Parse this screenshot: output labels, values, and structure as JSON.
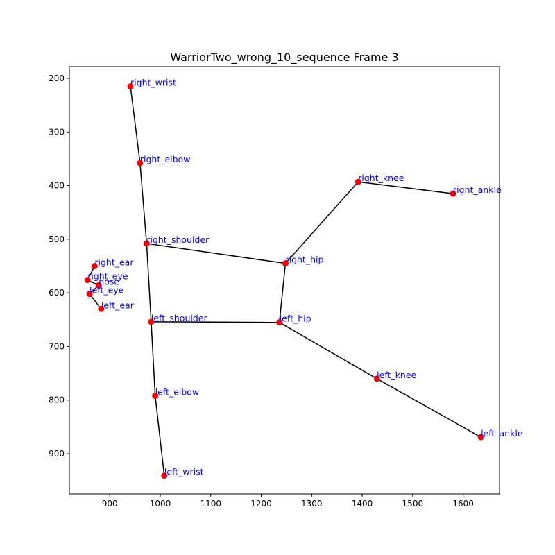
{
  "chart_data": {
    "type": "scatter",
    "title": "WarriorTwo_wrong_10_sequence Frame 3",
    "xlabel": "",
    "ylabel": "",
    "xlim": [
      820,
      1672
    ],
    "ylim": [
      975,
      178
    ],
    "y_inverted": true,
    "x_ticks": [
      900,
      1000,
      1100,
      1200,
      1300,
      1400,
      1500,
      1600
    ],
    "y_ticks": [
      200,
      300,
      400,
      500,
      600,
      700,
      800,
      900
    ],
    "grid": false,
    "point_color": "#ff0000",
    "line_color": "#000000",
    "label_color": "#0000ff",
    "keypoints": [
      {
        "name": "nose",
        "x": 878,
        "y": 586
      },
      {
        "name": "right_eye",
        "x": 856,
        "y": 576
      },
      {
        "name": "left_eye",
        "x": 860,
        "y": 602
      },
      {
        "name": "right_ear",
        "x": 870,
        "y": 550
      },
      {
        "name": "left_ear",
        "x": 883,
        "y": 630
      },
      {
        "name": "right_shoulder",
        "x": 973,
        "y": 508
      },
      {
        "name": "left_shoulder",
        "x": 982,
        "y": 654
      },
      {
        "name": "right_elbow",
        "x": 960,
        "y": 358
      },
      {
        "name": "left_elbow",
        "x": 990,
        "y": 792
      },
      {
        "name": "right_wrist",
        "x": 941,
        "y": 215
      },
      {
        "name": "left_wrist",
        "x": 1008,
        "y": 941
      },
      {
        "name": "right_hip",
        "x": 1248,
        "y": 545
      },
      {
        "name": "left_hip",
        "x": 1236,
        "y": 655
      },
      {
        "name": "right_knee",
        "x": 1392,
        "y": 393
      },
      {
        "name": "left_knee",
        "x": 1429,
        "y": 760
      },
      {
        "name": "right_ankle",
        "x": 1580,
        "y": 415
      },
      {
        "name": "left_ankle",
        "x": 1635,
        "y": 869
      }
    ],
    "connections": [
      [
        "right_wrist",
        "right_elbow"
      ],
      [
        "right_elbow",
        "right_shoulder"
      ],
      [
        "right_shoulder",
        "left_shoulder"
      ],
      [
        "left_shoulder",
        "left_elbow"
      ],
      [
        "left_elbow",
        "left_wrist"
      ],
      [
        "right_shoulder",
        "right_hip"
      ],
      [
        "left_shoulder",
        "left_hip"
      ],
      [
        "right_hip",
        "left_hip"
      ],
      [
        "right_hip",
        "right_knee"
      ],
      [
        "right_knee",
        "right_ankle"
      ],
      [
        "left_hip",
        "left_knee"
      ],
      [
        "left_knee",
        "left_ankle"
      ],
      [
        "right_ear",
        "right_eye"
      ],
      [
        "right_eye",
        "nose"
      ],
      [
        "nose",
        "left_eye"
      ],
      [
        "left_eye",
        "left_ear"
      ]
    ]
  }
}
